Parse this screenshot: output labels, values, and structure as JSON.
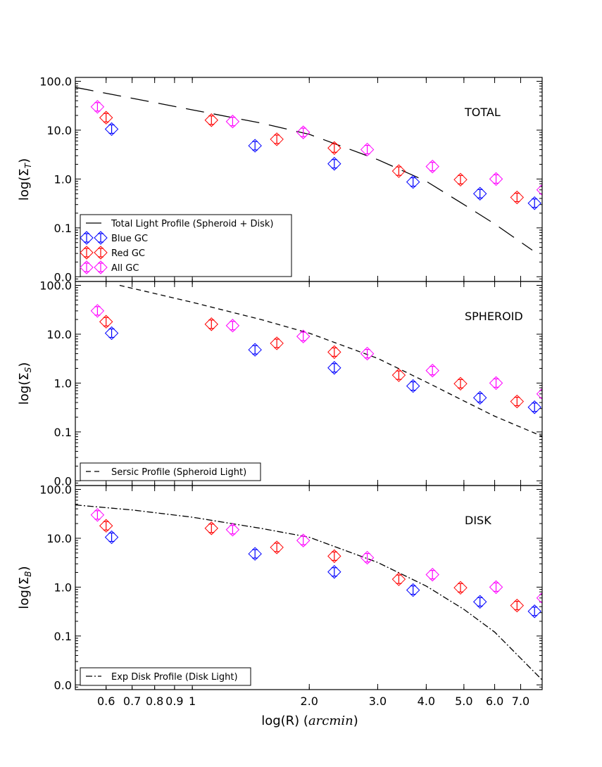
{
  "chart_data": {
    "type": "scatter",
    "xlabel": "log(R)",
    "xlabel_unit": "arcmin",
    "x_scale": "log",
    "xlim": [
      0.5,
      7.95
    ],
    "x_ticks": [
      0.6,
      0.7,
      0.8,
      0.9,
      1,
      2.0,
      3.0,
      4.0,
      5.0,
      6.0,
      7.0
    ],
    "x_tick_labels": [
      "0.6",
      "0.7",
      "0.8",
      "0.9",
      "1",
      "2.0",
      "3.0",
      "4.0",
      "5.0",
      "6.0",
      "7.0"
    ],
    "y_scale": "log",
    "ylim": [
      0.008,
      120
    ],
    "y_ticks": [
      0.01,
      0.1,
      1,
      10,
      100
    ],
    "y_tick_labels": [
      "0.0",
      "0.1",
      "1.0",
      "10.0",
      "100.0"
    ],
    "gc_series": [
      {
        "name": "Blue GC",
        "color": "#0000ff",
        "points": [
          [
            0.62,
            10.5
          ],
          [
            1.45,
            4.8
          ],
          [
            2.32,
            2.05
          ],
          [
            3.7,
            0.87
          ],
          [
            5.5,
            0.5
          ],
          [
            7.6,
            0.32
          ]
        ]
      },
      {
        "name": "Red GC",
        "color": "#ff0000",
        "points": [
          [
            0.6,
            18.0
          ],
          [
            1.12,
            16.0
          ],
          [
            1.65,
            6.5
          ],
          [
            2.32,
            4.3
          ],
          [
            3.4,
            1.45
          ],
          [
            4.9,
            0.97
          ],
          [
            6.85,
            0.42
          ]
        ]
      },
      {
        "name": "All GC",
        "color": "#ff00ff",
        "points": [
          [
            0.57,
            30.0
          ],
          [
            1.27,
            15.0
          ],
          [
            1.93,
            9.0
          ],
          [
            2.82,
            4.0
          ],
          [
            4.15,
            1.8
          ],
          [
            6.05,
            1.0
          ],
          [
            8.0,
            0.6
          ]
        ]
      }
    ],
    "panels": [
      {
        "label": "TOTAL",
        "ylabel": "log(Σ",
        "ylabel_sub": "T",
        "profile": {
          "name": "Total Light Profile (Spheroid + Disk)",
          "style": "long-dash",
          "x": [
            0.5,
            0.7,
            1.0,
            1.5,
            2.0,
            3.0,
            4.0,
            5.0,
            6.0,
            7.5
          ],
          "y": [
            75,
            45,
            26,
            14,
            8.2,
            2.5,
            0.9,
            0.3,
            0.12,
            0.035
          ]
        },
        "legend": [
          "Total Light Profile (Spheroid + Disk)",
          "Blue GC",
          "Red GC",
          "All GC"
        ]
      },
      {
        "label": "SPHEROID",
        "ylabel": "log(Σ",
        "ylabel_sub": "S",
        "profile": {
          "name": "Sersic Profile (Spheroid Light)",
          "style": "dash",
          "x": [
            0.65,
            1.0,
            1.5,
            2.0,
            3.0,
            4.0,
            5.0,
            6.0,
            8.0
          ],
          "y": [
            100,
            45,
            20,
            10.5,
            3.2,
            1.05,
            0.43,
            0.21,
            0.08
          ]
        },
        "legend": [
          "Sersic Profile (Spheroid Light)"
        ]
      },
      {
        "label": "DISK",
        "ylabel": "log(Σ",
        "ylabel_sub": "B",
        "profile": {
          "name": "Exp Disk Profile (Disk Light)",
          "style": "dash-dot",
          "x": [
            0.5,
            0.7,
            1.0,
            1.5,
            2.0,
            3.0,
            4.0,
            5.0,
            6.0,
            8.0
          ],
          "y": [
            48,
            38,
            27,
            16,
            10.5,
            3.2,
            1.05,
            0.35,
            0.12,
            0.012
          ]
        },
        "legend": [
          "Exp Disk Profile (Disk Light)"
        ]
      }
    ]
  }
}
